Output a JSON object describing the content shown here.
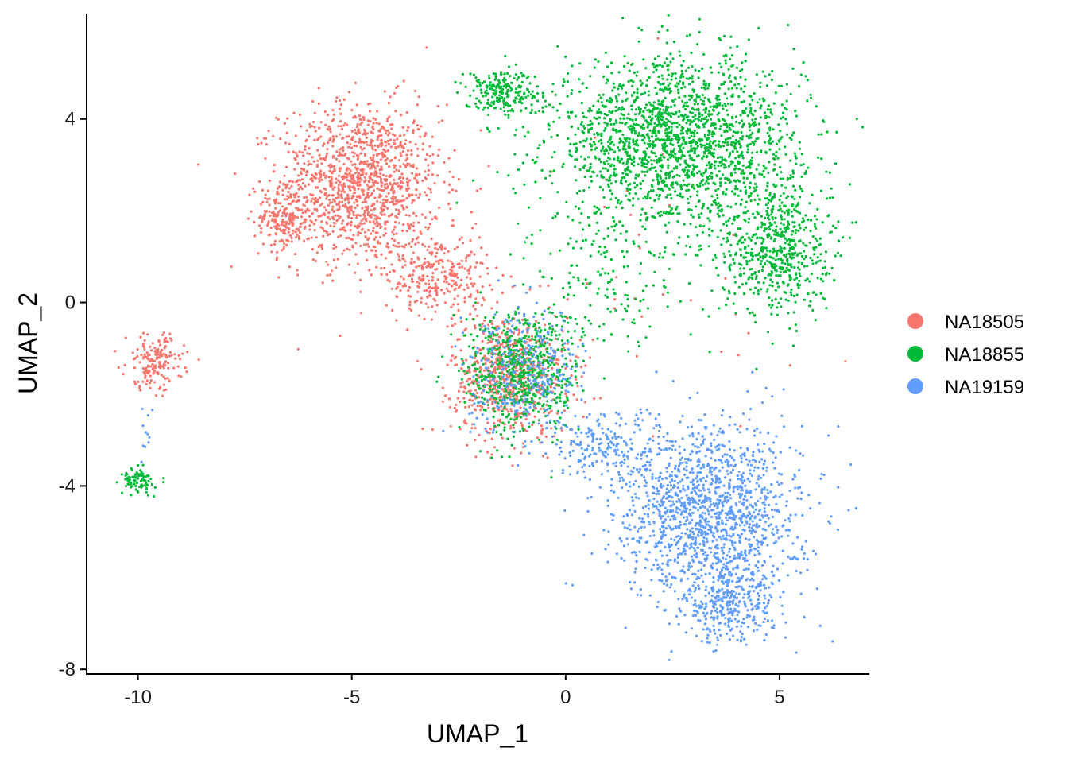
{
  "chart_data": {
    "type": "scatter",
    "title": "",
    "xlabel": "UMAP_1",
    "ylabel": "UMAP_2",
    "xlim": [
      -11.2,
      7.1
    ],
    "ylim": [
      -8.1,
      6.3
    ],
    "x_ticks": [
      -10,
      -5,
      0,
      5
    ],
    "x_tick_labels": [
      "-10",
      "-5",
      "0",
      "5"
    ],
    "y_ticks": [
      -8,
      -4,
      0,
      4
    ],
    "y_tick_labels": [
      "-8",
      "-4",
      "0",
      "4"
    ],
    "grid": false,
    "legend_position": "right",
    "series": [
      {
        "name": "NA18505",
        "color": "#F8766D",
        "clusters": [
          {
            "cx": -4.8,
            "cy": 2.6,
            "sx": 1.25,
            "sy": 1.15,
            "n": 1300
          },
          {
            "cx": -6.6,
            "cy": 1.8,
            "sx": 0.45,
            "sy": 0.4,
            "n": 180
          },
          {
            "cx": -3.0,
            "cy": 0.6,
            "sx": 0.8,
            "sy": 0.6,
            "n": 300
          },
          {
            "cx": -1.3,
            "cy": -1.6,
            "sx": 0.9,
            "sy": 0.9,
            "n": 700
          },
          {
            "cx": -9.6,
            "cy": -1.3,
            "sx": 0.45,
            "sy": 0.4,
            "n": 170
          },
          {
            "cx": 1.5,
            "cy": 0.0,
            "sx": 3.0,
            "sy": 3.0,
            "n": 40
          }
        ]
      },
      {
        "name": "NA18855",
        "color": "#00BA38",
        "clusters": [
          {
            "cx": 2.6,
            "cy": 3.5,
            "sx": 1.9,
            "sy": 1.2,
            "n": 2000
          },
          {
            "cx": 4.9,
            "cy": 1.2,
            "sx": 0.85,
            "sy": 1.0,
            "n": 600
          },
          {
            "cx": -1.5,
            "cy": 4.6,
            "sx": 0.6,
            "sy": 0.35,
            "n": 220
          },
          {
            "cx": -1.0,
            "cy": -1.5,
            "sx": 0.9,
            "sy": 0.9,
            "n": 650
          },
          {
            "cx": -10.0,
            "cy": -3.9,
            "sx": 0.25,
            "sy": 0.18,
            "n": 90
          },
          {
            "cx": 1.0,
            "cy": 0.5,
            "sx": 1.2,
            "sy": 1.0,
            "n": 150
          }
        ]
      },
      {
        "name": "NA19159",
        "color": "#619CFF",
        "clusters": [
          {
            "cx": 3.4,
            "cy": -4.6,
            "sx": 1.4,
            "sy": 1.3,
            "n": 1500
          },
          {
            "cx": 3.8,
            "cy": -6.6,
            "sx": 0.7,
            "sy": 0.55,
            "n": 300
          },
          {
            "cx": 0.9,
            "cy": -3.2,
            "sx": 0.9,
            "sy": 0.5,
            "n": 200
          },
          {
            "cx": -0.9,
            "cy": -1.5,
            "sx": 0.9,
            "sy": 0.9,
            "n": 300
          },
          {
            "cx": -9.8,
            "cy": -2.7,
            "sx": 0.15,
            "sy": 0.5,
            "n": 12
          }
        ]
      }
    ]
  }
}
